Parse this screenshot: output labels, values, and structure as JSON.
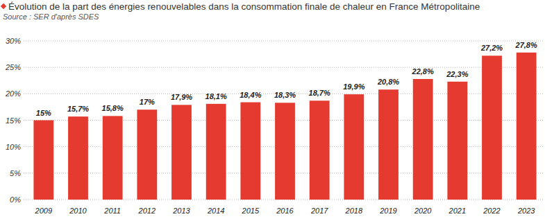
{
  "chart_data": {
    "type": "bar",
    "title": "Évolution de la part des énergies renouvelables dans la consommation finale de chaleur en France Métropolitaine",
    "subtitle": "Source : SER d'après SDES",
    "categories": [
      "2009",
      "2010",
      "2011",
      "2012",
      "2013",
      "2014",
      "2015",
      "2016",
      "2017",
      "2018",
      "2019",
      "2020",
      "2021",
      "2022",
      "2023"
    ],
    "values": [
      15,
      15.7,
      15.8,
      17,
      17.9,
      18.1,
      18.4,
      18.3,
      18.7,
      19.9,
      20.8,
      22.8,
      22.3,
      27.2,
      27.8
    ],
    "value_labels": [
      "15%",
      "15,7%",
      "15,8%",
      "17%",
      "17,9%",
      "18,1%",
      "18,4%",
      "18,3%",
      "18,7%",
      "19,9%",
      "20,8%",
      "22,8%",
      "22,3%",
      "27,2%",
      "27,8%"
    ],
    "color": "#e43a2f",
    "ylim": [
      0,
      30
    ],
    "yticks": [
      {
        "value": 0,
        "label": "0%"
      },
      {
        "value": 5,
        "label": "5%"
      },
      {
        "value": 10,
        "label": "10%"
      },
      {
        "value": 15,
        "label": "15%"
      },
      {
        "value": 20,
        "label": "20%"
      },
      {
        "value": 25,
        "label": "25%"
      },
      {
        "value": 30,
        "label": "30%"
      }
    ],
    "grid": true,
    "data_labels": true
  }
}
